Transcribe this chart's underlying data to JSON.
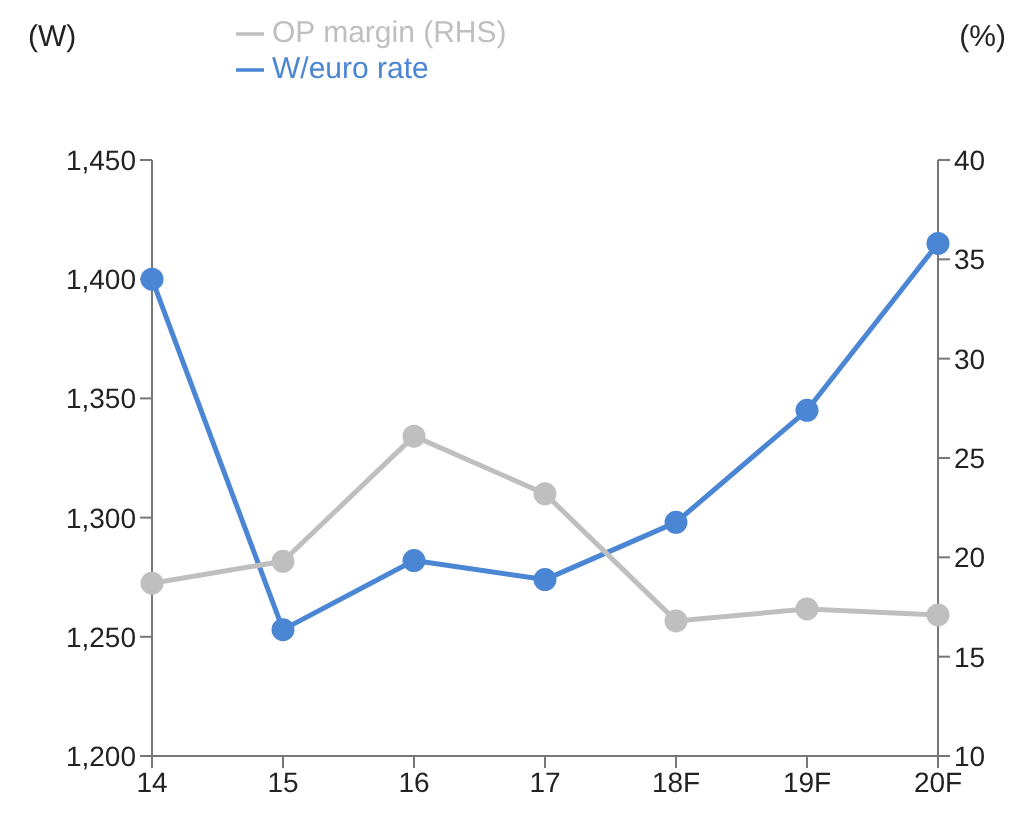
{
  "chart_data": {
    "type": "line",
    "ylabel": "(W)",
    "y2label": "(%)",
    "categories": [
      "14",
      "15",
      "16",
      "17",
      "18F",
      "19F",
      "20F"
    ],
    "series": [
      {
        "name": "W/euro rate",
        "color": "#4a86d4",
        "values": [
          1400,
          1253,
          1282,
          1274,
          1298,
          1345,
          1415
        ]
      },
      {
        "name": "OP margin (RHS)",
        "color": "#bfbfbf",
        "axis": "y2",
        "values": [
          18.7,
          19.8,
          26.1,
          23.2,
          16.8,
          17.4,
          17.1
        ]
      }
    ],
    "ylim": [
      1200,
      1450
    ],
    "yticks": [
      {
        "value": 1200,
        "label": "1,200"
      },
      {
        "value": 1250,
        "label": "1,250"
      },
      {
        "value": 1300,
        "label": "1,300"
      },
      {
        "value": 1350,
        "label": "1,350"
      },
      {
        "value": 1400,
        "label": "1,400"
      },
      {
        "value": 1450,
        "label": "1,450"
      }
    ],
    "y2lim": [
      10,
      40
    ],
    "y2ticks": [
      10,
      15,
      20,
      25,
      30,
      35,
      40
    ],
    "grid": false,
    "legend": "top",
    "marker": "circle",
    "line_style": "solid"
  }
}
